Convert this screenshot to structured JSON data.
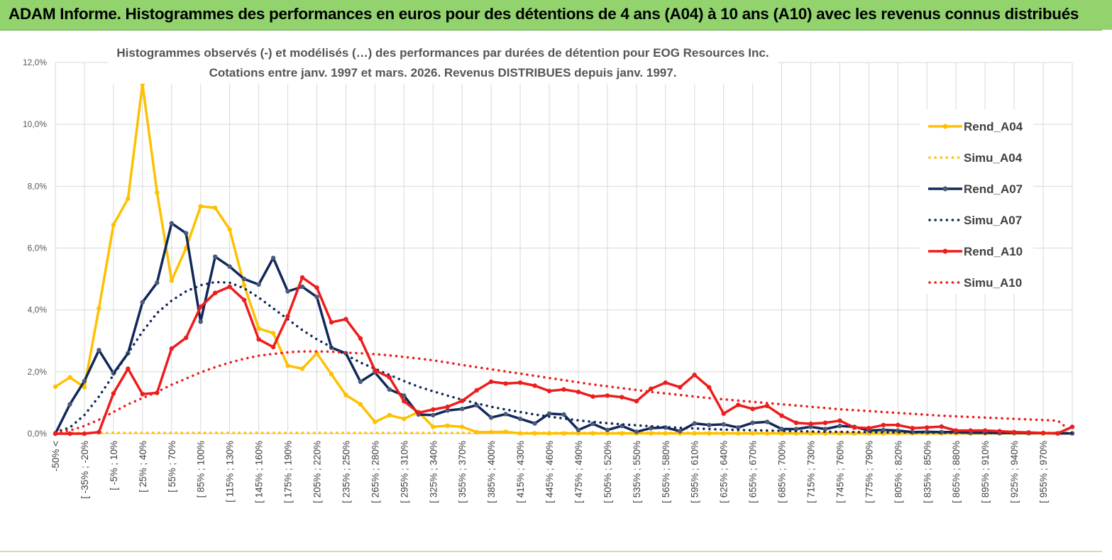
{
  "banner": {
    "title": "ADAM Informe. Histogrammes des performances en euros pour des détentions de 4 ans (A04) à 10 ans (A10) avec les revenus connus distribués"
  },
  "chart_data": {
    "type": "line",
    "title_line1": "Histogrammes observés (-) et modélisés (…) des performances par durées de détention pour EOG Resources Inc.",
    "title_line2": "Cotations entre janv. 1997 et mars. 2026. Revenus DISTRIBUES depuis janv. 1997.",
    "ylim": [
      0,
      12
    ],
    "yticks": [
      "0,0%",
      "2,0%",
      "4,0%",
      "6,0%",
      "8,0%",
      "10,0%",
      "12,0%"
    ],
    "x_labels": [
      "-50% <",
      "[ -35% ; -20%",
      "[ -5% ; 10%",
      "[ 25% ; 40%",
      "[ 55% ; 70%",
      "[ 85% ; 100%",
      "[ 115% ; 130%",
      "[ 145% ; 160%",
      "[ 175% ; 190%",
      "[ 205% ; 220%",
      "[ 235% ; 250%",
      "[ 265% ; 280%",
      "[ 295% ; 310%",
      "[ 325% ; 340%",
      "[ 355% ; 370%",
      "[ 385% ; 400%",
      "[ 415% ; 430%",
      "[ 445% ; 460%",
      "[ 475% ; 490%",
      "[ 505% ; 520%",
      "[ 535% ; 550%",
      "[ 565% ; 580%",
      "[ 595% ; 610%",
      "[ 625% ; 640%",
      "[ 655% ; 670%",
      "[ 685% ; 700%",
      "[ 715% ; 730%",
      "[ 745% ; 760%",
      "[ 775% ; 790%",
      "[ 805% ; 820%",
      "[ 835% ; 850%",
      "[ 865% ; 880%",
      "[ 895% ; 910%",
      "[ 925% ; 940%",
      "[ 955% ; 970%"
    ],
    "series": [
      {
        "name": "Rend_A04",
        "style": "solid",
        "color": "#ffc000",
        "values": [
          1.52,
          1.82,
          1.5,
          4.05,
          6.75,
          7.6,
          11.3,
          7.8,
          4.95,
          6.0,
          7.35,
          7.3,
          6.6,
          4.8,
          3.4,
          3.25,
          2.2,
          2.1,
          2.6,
          1.92,
          1.25,
          0.95,
          0.38,
          0.6,
          0.48,
          0.7,
          0.22,
          0.26,
          0.22,
          0.05,
          0.05,
          0.06,
          0.01,
          0.01,
          0.01,
          0.01,
          0.01,
          0.01,
          0.01,
          0.01,
          0.01,
          0.01,
          0.01,
          0.01,
          0.01,
          0.01,
          0.01,
          0.01,
          0.01,
          0.01,
          0.01,
          0.01,
          0.01,
          0.01,
          0.01,
          0.01,
          0.01,
          0.01,
          0.01,
          0.01,
          0.01,
          0.01,
          0.01,
          0.01,
          0.01,
          0.01,
          0.01,
          0.01,
          0.01,
          0.01,
          0.01
        ]
      },
      {
        "name": "Simu_A04",
        "style": "dotted",
        "color": "#ffc000",
        "values": [
          0.03,
          0.03,
          0.03,
          0.03,
          0.03,
          0.03,
          0.03,
          0.03,
          0.03,
          0.03,
          0.03,
          0.03,
          0.03,
          0.03,
          0.03,
          0.03,
          0.03,
          0.03,
          0.03,
          0.03,
          0.03,
          0.03,
          0.03,
          0.03,
          0.03,
          0.03,
          0.03,
          0.03,
          0.03,
          0.03,
          0.03,
          0.03,
          0.03,
          0.03,
          0.03,
          0.03,
          0.03,
          0.03,
          0.03,
          0.03,
          0.03,
          0.03,
          0.03,
          0.03,
          0.03,
          0.03,
          0.03,
          0.03,
          0.03,
          0.03,
          0.03,
          0.03,
          0.03,
          0.03,
          0.03,
          0.03,
          0.03,
          0.03,
          0.03,
          0.03,
          0.03,
          0.03,
          0.03,
          0.03,
          0.03,
          0.03,
          0.03,
          0.03,
          0.03,
          0.03,
          0.03
        ]
      },
      {
        "name": "Rend_A07",
        "style": "solid",
        "color": "#10285a",
        "values": [
          0.0,
          0.95,
          1.7,
          2.7,
          1.95,
          2.6,
          4.25,
          4.88,
          6.8,
          6.48,
          3.62,
          5.72,
          5.4,
          5.0,
          4.82,
          5.68,
          4.6,
          4.75,
          4.42,
          2.78,
          2.6,
          1.68,
          1.98,
          1.43,
          1.23,
          0.62,
          0.6,
          0.75,
          0.8,
          0.92,
          0.52,
          0.63,
          0.48,
          0.33,
          0.65,
          0.62,
          0.12,
          0.32,
          0.12,
          0.25,
          0.06,
          0.18,
          0.2,
          0.08,
          0.33,
          0.28,
          0.3,
          0.2,
          0.35,
          0.38,
          0.15,
          0.15,
          0.22,
          0.15,
          0.25,
          0.22,
          0.1,
          0.12,
          0.1,
          0.05,
          0.06,
          0.05,
          0.05,
          0.03,
          0.03,
          0.02,
          0.03,
          0.02,
          0.02,
          0.01,
          0.01
        ]
      },
      {
        "name": "Simu_A07",
        "style": "dotted",
        "color": "#10285a",
        "values": [
          0.05,
          0.2,
          0.6,
          1.2,
          1.9,
          2.6,
          3.3,
          3.9,
          4.3,
          4.6,
          4.8,
          4.9,
          4.88,
          4.7,
          4.4,
          4.05,
          3.7,
          3.35,
          3.05,
          2.8,
          2.55,
          2.3,
          2.1,
          1.9,
          1.7,
          1.52,
          1.37,
          1.23,
          1.1,
          0.98,
          0.87,
          0.78,
          0.7,
          0.62,
          0.55,
          0.49,
          0.43,
          0.38,
          0.34,
          0.3,
          0.27,
          0.24,
          0.21,
          0.19,
          0.17,
          0.15,
          0.13,
          0.12,
          0.11,
          0.1,
          0.09,
          0.08,
          0.07,
          0.06,
          0.06,
          0.05,
          0.05,
          0.04,
          0.04,
          0.04,
          0.03,
          0.03,
          0.03,
          0.03,
          0.02,
          0.02,
          0.02,
          0.02,
          0.02,
          0.02,
          0.02
        ]
      },
      {
        "name": "Rend_A10",
        "style": "solid",
        "color": "#ee1c1c",
        "values": [
          0.0,
          0.0,
          0.0,
          0.05,
          1.3,
          2.1,
          1.28,
          1.32,
          2.75,
          3.1,
          4.1,
          4.55,
          4.75,
          4.32,
          3.05,
          2.8,
          3.8,
          5.05,
          4.72,
          3.6,
          3.7,
          3.08,
          2.05,
          1.82,
          1.05,
          0.68,
          0.78,
          0.87,
          1.06,
          1.4,
          1.68,
          1.62,
          1.65,
          1.55,
          1.38,
          1.43,
          1.35,
          1.2,
          1.23,
          1.18,
          1.05,
          1.45,
          1.65,
          1.5,
          1.9,
          1.5,
          0.65,
          0.93,
          0.8,
          0.9,
          0.58,
          0.35,
          0.32,
          0.35,
          0.42,
          0.2,
          0.18,
          0.28,
          0.28,
          0.18,
          0.2,
          0.23,
          0.1,
          0.1,
          0.1,
          0.08,
          0.05,
          0.04,
          0.02,
          0.01,
          0.22
        ]
      },
      {
        "name": "Simu_A10",
        "style": "dotted",
        "color": "#ee1c1c",
        "values": [
          0.05,
          0.1,
          0.25,
          0.45,
          0.7,
          0.95,
          1.15,
          1.35,
          1.58,
          1.78,
          1.98,
          2.15,
          2.3,
          2.42,
          2.52,
          2.58,
          2.63,
          2.66,
          2.66,
          2.65,
          2.62,
          2.6,
          2.57,
          2.53,
          2.48,
          2.43,
          2.37,
          2.3,
          2.22,
          2.15,
          2.08,
          2.01,
          1.94,
          1.87,
          1.8,
          1.73,
          1.66,
          1.59,
          1.53,
          1.47,
          1.41,
          1.35,
          1.3,
          1.25,
          1.2,
          1.15,
          1.11,
          1.07,
          1.03,
          0.99,
          0.95,
          0.91,
          0.87,
          0.83,
          0.79,
          0.76,
          0.73,
          0.7,
          0.67,
          0.64,
          0.61,
          0.58,
          0.56,
          0.54,
          0.52,
          0.5,
          0.48,
          0.46,
          0.44,
          0.42,
          0.05
        ]
      }
    ]
  }
}
